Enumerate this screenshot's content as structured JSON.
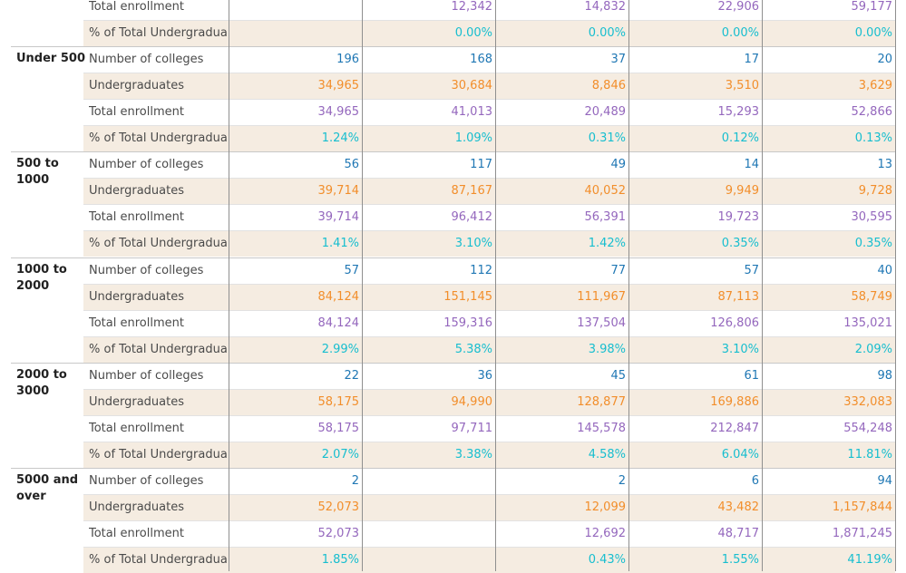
{
  "measures": {
    "colleges": "Number of colleges",
    "undergrads": "Undergraduates",
    "total": "Total enrollment",
    "pct": "% of Total Undergradua.."
  },
  "colors": {
    "colleges": "#1f77b4",
    "undergrads": "#f28e2b",
    "total": "#9467bd",
    "pct": "#17becf",
    "band": "#f5ece1"
  },
  "partial_group": {
    "total": [
      "",
      "12,342",
      "14,832",
      "22,906",
      "59,177"
    ],
    "pct": [
      "",
      "0.00%",
      "0.00%",
      "0.00%",
      "0.00%"
    ]
  },
  "groups": [
    {
      "label": "Under 500",
      "colleges": [
        "196",
        "168",
        "37",
        "17",
        "20"
      ],
      "undergrads": [
        "34,965",
        "30,684",
        "8,846",
        "3,510",
        "3,629"
      ],
      "total": [
        "34,965",
        "41,013",
        "20,489",
        "15,293",
        "52,866"
      ],
      "pct": [
        "1.24%",
        "1.09%",
        "0.31%",
        "0.12%",
        "0.13%"
      ]
    },
    {
      "label": "500 to 1000",
      "colleges": [
        "56",
        "117",
        "49",
        "14",
        "13"
      ],
      "undergrads": [
        "39,714",
        "87,167",
        "40,052",
        "9,949",
        "9,728"
      ],
      "total": [
        "39,714",
        "96,412",
        "56,391",
        "19,723",
        "30,595"
      ],
      "pct": [
        "1.41%",
        "3.10%",
        "1.42%",
        "0.35%",
        "0.35%"
      ]
    },
    {
      "label": "1000 to 2000",
      "colleges": [
        "57",
        "112",
        "77",
        "57",
        "40"
      ],
      "undergrads": [
        "84,124",
        "151,145",
        "111,967",
        "87,113",
        "58,749"
      ],
      "total": [
        "84,124",
        "159,316",
        "137,504",
        "126,806",
        "135,021"
      ],
      "pct": [
        "2.99%",
        "5.38%",
        "3.98%",
        "3.10%",
        "2.09%"
      ]
    },
    {
      "label": "2000 to 3000",
      "colleges": [
        "22",
        "36",
        "45",
        "61",
        "98"
      ],
      "undergrads": [
        "58,175",
        "94,990",
        "128,877",
        "169,886",
        "332,083"
      ],
      "total": [
        "58,175",
        "97,711",
        "145,578",
        "212,847",
        "554,248"
      ],
      "pct": [
        "2.07%",
        "3.38%",
        "4.58%",
        "6.04%",
        "11.81%"
      ]
    },
    {
      "label": "5000 and over",
      "colleges": [
        "2",
        "",
        "2",
        "6",
        "94"
      ],
      "undergrads": [
        "52,073",
        "",
        "12,099",
        "43,482",
        "1,157,844"
      ],
      "total": [
        "52,073",
        "",
        "12,692",
        "48,717",
        "1,871,245"
      ],
      "pct": [
        "1.85%",
        "",
        "0.43%",
        "1.55%",
        "41.19%"
      ]
    }
  ]
}
